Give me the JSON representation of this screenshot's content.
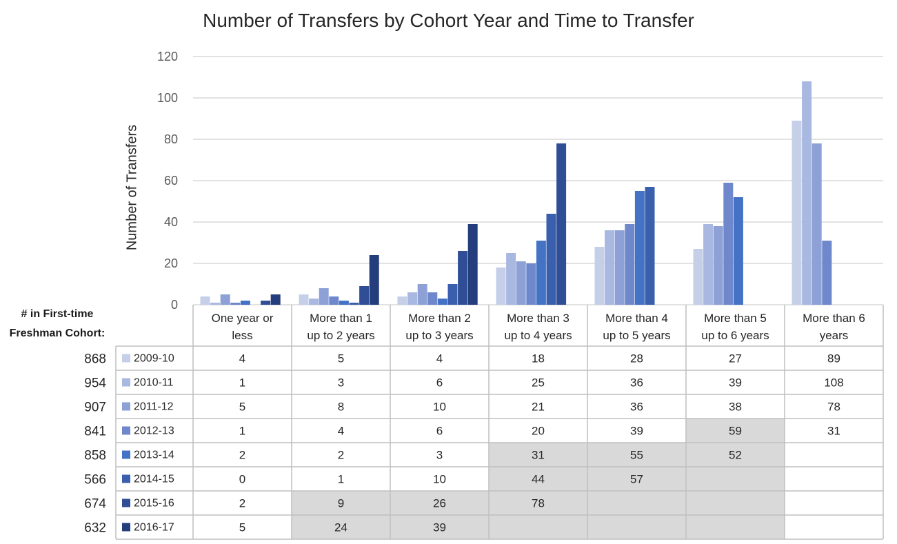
{
  "page": {
    "title": "Number of Transfers by Cohort Year and Time to Transfer",
    "cohort_header_line1": "# in First-time",
    "cohort_header_line2": "Freshman Cohort:"
  },
  "chart_data": {
    "type": "bar",
    "title": "Number of Transfers by Cohort Year and Time to Transfer",
    "xlabel": "",
    "ylabel": "Number of Transfers",
    "ylim": [
      0,
      120
    ],
    "yticks": [
      0,
      20,
      40,
      60,
      80,
      100,
      120
    ],
    "grid": true,
    "legend": "data-table",
    "categories": [
      [
        "One year or",
        "less"
      ],
      [
        "More than 1",
        "up to 2 years"
      ],
      [
        "More than 2",
        "up to 3 years"
      ],
      [
        "More than 3",
        "up to 4 years"
      ],
      [
        "More than 4",
        "up to 5 years"
      ],
      [
        "More than 5",
        "up to 6 years"
      ],
      [
        "More than 6",
        "years"
      ]
    ],
    "series": [
      {
        "name": "2009-10",
        "cohort": "868",
        "color": "#c5cfe8",
        "values": [
          4,
          5,
          4,
          18,
          28,
          27,
          89
        ]
      },
      {
        "name": "2010-11",
        "cohort": "954",
        "color": "#a9b8e0",
        "values": [
          1,
          3,
          6,
          25,
          36,
          39,
          108
        ]
      },
      {
        "name": "2011-12",
        "cohort": "907",
        "color": "#8da1d7",
        "values": [
          5,
          8,
          10,
          21,
          36,
          38,
          78
        ]
      },
      {
        "name": "2012-13",
        "cohort": "841",
        "color": "#6f88cc",
        "values": [
          1,
          4,
          6,
          20,
          39,
          59,
          31
        ]
      },
      {
        "name": "2013-14",
        "cohort": "858",
        "color": "#4472c4",
        "values": [
          2,
          2,
          3,
          31,
          55,
          52,
          null
        ]
      },
      {
        "name": "2014-15",
        "cohort": "566",
        "color": "#3a5fad",
        "values": [
          0,
          1,
          10,
          44,
          57,
          null,
          null
        ]
      },
      {
        "name": "2015-16",
        "cohort": "674",
        "color": "#2f4e95",
        "values": [
          2,
          9,
          26,
          78,
          null,
          null,
          null
        ]
      },
      {
        "name": "2016-17",
        "cohort": "632",
        "color": "#233d7d",
        "values": [
          5,
          24,
          39,
          null,
          null,
          null,
          null
        ]
      }
    ],
    "shaded_cells": [
      [
        3,
        5
      ],
      [
        4,
        3
      ],
      [
        4,
        4
      ],
      [
        4,
        5
      ],
      [
        5,
        3
      ],
      [
        5,
        4
      ],
      [
        5,
        5
      ],
      [
        6,
        1
      ],
      [
        6,
        2
      ],
      [
        6,
        3
      ],
      [
        6,
        4
      ],
      [
        6,
        5
      ],
      [
        7,
        1
      ],
      [
        7,
        2
      ],
      [
        7,
        3
      ],
      [
        7,
        4
      ],
      [
        7,
        5
      ]
    ],
    "colors": {
      "grid": "#d9d9d9",
      "table_border": "#bfbfbf",
      "shaded": "#d9d9d9",
      "axis_text": "#595959"
    }
  }
}
